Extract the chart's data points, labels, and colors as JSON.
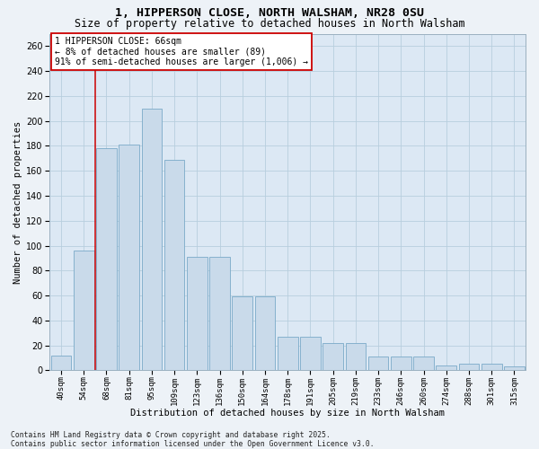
{
  "title_line1": "1, HIPPERSON CLOSE, NORTH WALSHAM, NR28 0SU",
  "title_line2": "Size of property relative to detached houses in North Walsham",
  "xlabel": "Distribution of detached houses by size in North Walsham",
  "ylabel": "Number of detached properties",
  "categories": [
    "40sqm",
    "54sqm",
    "68sqm",
    "81sqm",
    "95sqm",
    "109sqm",
    "123sqm",
    "136sqm",
    "150sqm",
    "164sqm",
    "178sqm",
    "191sqm",
    "205sqm",
    "219sqm",
    "233sqm",
    "246sqm",
    "260sqm",
    "274sqm",
    "288sqm",
    "301sqm",
    "315sqm"
  ],
  "bar_values": [
    12,
    96,
    178,
    181,
    210,
    169,
    91,
    91,
    59,
    59,
    27,
    27,
    22,
    22,
    11,
    11,
    11,
    4,
    5,
    5,
    3
  ],
  "bar_color": "#c9daea",
  "bar_edge_color": "#7aaac8",
  "vline_color": "#cc0000",
  "vline_x": 1.5,
  "annotation_text": "1 HIPPERSON CLOSE: 66sqm\n← 8% of detached houses are smaller (89)\n91% of semi-detached houses are larger (1,006) →",
  "annotation_facecolor": "#ffffff",
  "annotation_edgecolor": "#cc0000",
  "ylim_max": 270,
  "yticks": [
    0,
    20,
    40,
    60,
    80,
    100,
    120,
    140,
    160,
    180,
    200,
    220,
    240,
    260
  ],
  "grid_color": "#b8cede",
  "plot_bg": "#dce8f4",
  "fig_bg": "#edf2f7",
  "footer": "Contains HM Land Registry data © Crown copyright and database right 2025.\nContains public sector information licensed under the Open Government Licence v3.0."
}
